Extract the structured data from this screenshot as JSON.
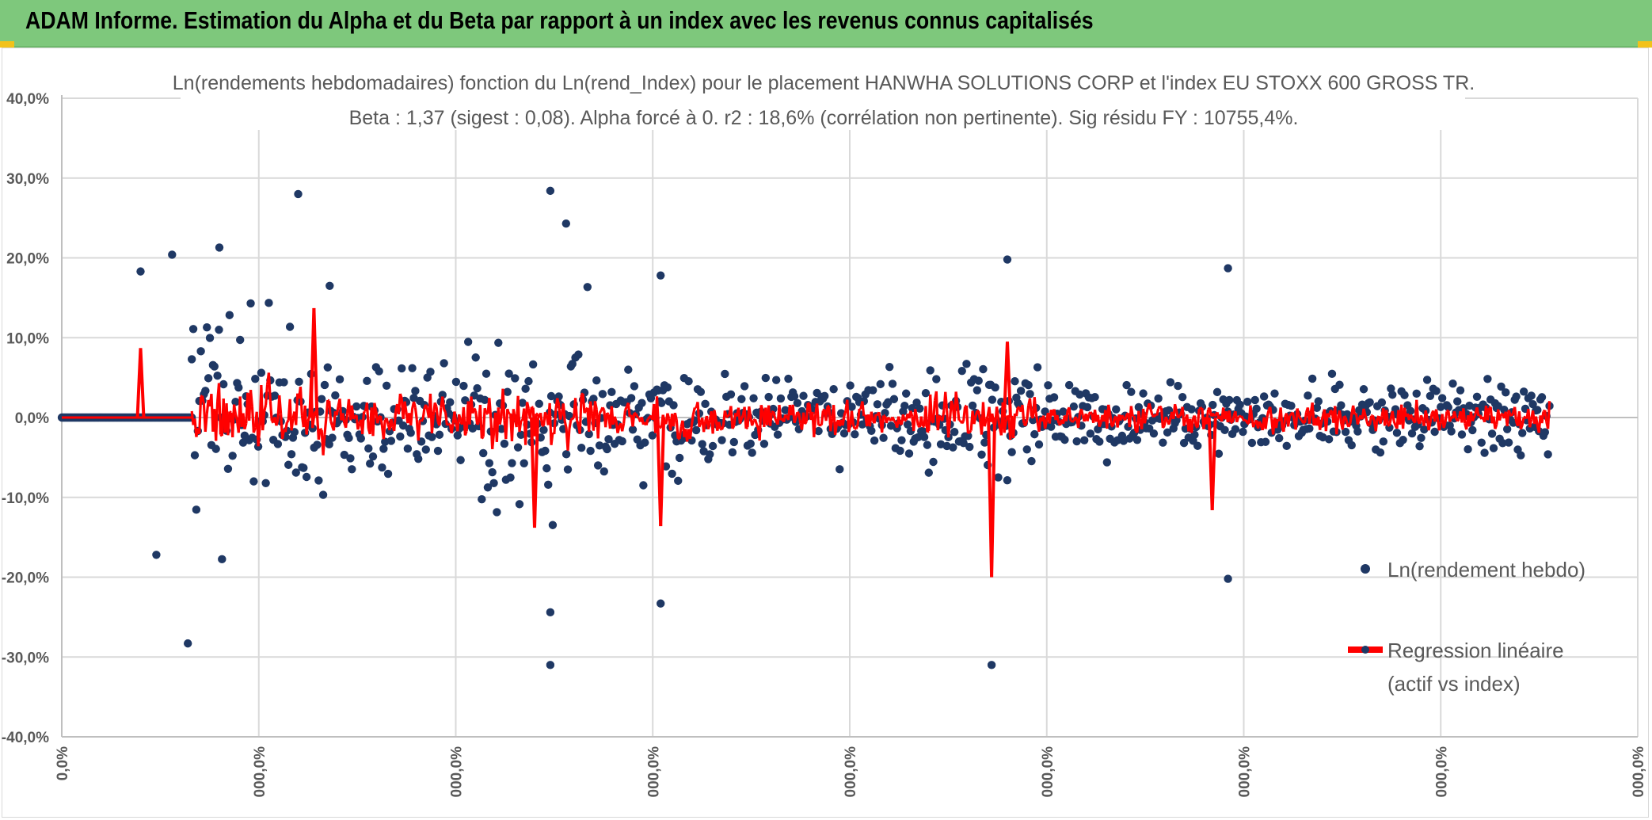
{
  "header": {
    "title": "ADAM Informe. Estimation du Alpha et du Beta par rapport à un index avec les revenus connus capitalisés"
  },
  "colors": {
    "banner": "#7ec87c",
    "points": "#1f3864",
    "regression": "#ff0000",
    "grid": "#d9d9d9",
    "text": "#595959"
  },
  "chart_data": {
    "type": "scatter",
    "title": "Ln(rendements hebdomadaires) fonction du Ln(rend_Index) pour le placement HANWHA SOLUTIONS CORP et l'index EU STOXX 600 GROSS TR.",
    "subtitle": "Beta : 1,37 (sigest : 0,08).  Alpha forcé à 0. r2 : 18,6% (corrélation non pertinente). Sig résidu FY : 10755,4%.",
    "xlabel": "",
    "ylabel": "",
    "ylim": [
      -40,
      40
    ],
    "y_ticks": [
      "40,0%",
      "30,0%",
      "20,0%",
      "10,0%",
      "0,0%",
      "-10,0%",
      "-20,0%",
      "-30,0%",
      "-40,0%"
    ],
    "x_ticks": [
      "0,0%",
      "000,0%",
      "000,0%",
      "000,0%",
      "000,0%",
      "000,0%",
      "000,0%",
      "000,0%",
      "000,0%"
    ],
    "grid": true,
    "legend_position": "right",
    "stats": {
      "beta": 1.37,
      "sigest": 0.08,
      "alpha": 0,
      "r2": 18.6,
      "sig_residu_fy": 10755.4
    },
    "series": [
      {
        "name": "Ln(rendement hebdo)",
        "kind": "points"
      },
      {
        "name": "Regression linéaire (actif vs index)",
        "kind": "line"
      }
    ],
    "legend": {
      "points_label": "Ln(rendement hebdo)",
      "line_label_1": "Regression linéaire",
      "line_label_2": "(actif vs index)"
    },
    "notable_points": [
      {
        "x": 0.05,
        "y": 18.3
      },
      {
        "x": 0.06,
        "y": -17.2
      },
      {
        "x": 0.07,
        "y": 20.4
      },
      {
        "x": 0.08,
        "y": -28.3
      },
      {
        "x": 0.1,
        "y": 21.3
      },
      {
        "x": 0.15,
        "y": 28.0
      },
      {
        "x": 0.17,
        "y": 16.5
      },
      {
        "x": 0.31,
        "y": 28.4
      },
      {
        "x": 0.32,
        "y": 24.3
      },
      {
        "x": 0.31,
        "y": -31.0
      },
      {
        "x": 0.31,
        "y": -24.4
      },
      {
        "x": 0.38,
        "y": 17.8
      },
      {
        "x": 0.38,
        "y": -23.3
      },
      {
        "x": 0.6,
        "y": 19.8
      },
      {
        "x": 0.59,
        "y": -31.0
      },
      {
        "x": 0.74,
        "y": 18.7
      },
      {
        "x": 0.74,
        "y": -20.2
      }
    ],
    "notable_regression": [
      {
        "x": 0.05,
        "y": 8.7
      },
      {
        "x": 0.16,
        "y": 13.7
      },
      {
        "x": 0.3,
        "y": -13.8
      },
      {
        "x": 0.38,
        "y": -13.6
      },
      {
        "x": 0.59,
        "y": -20.0
      },
      {
        "x": 0.6,
        "y": 9.5
      },
      {
        "x": 0.73,
        "y": -11.6
      }
    ]
  }
}
